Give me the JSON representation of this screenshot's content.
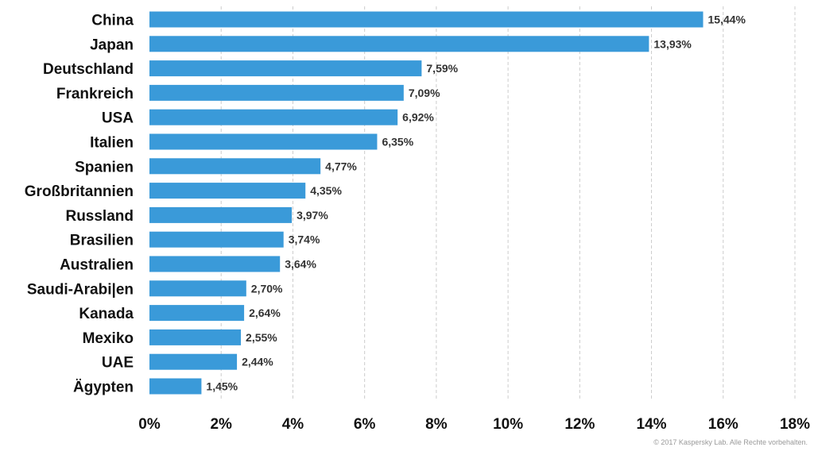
{
  "chart_data": {
    "type": "bar",
    "orientation": "horizontal",
    "categories": [
      "China",
      "Japan",
      "Deutschland",
      "Frankreich",
      "USA",
      "Italien",
      "Spanien",
      "Großbritannien",
      "Russland",
      "Brasilien",
      "Australien",
      "Saudi-Arabi|en",
      "Kanada",
      "Mexiko",
      "UAE",
      "Ägypten"
    ],
    "values": [
      15.44,
      13.93,
      7.59,
      7.09,
      6.92,
      6.35,
      4.77,
      4.35,
      3.97,
      3.74,
      3.64,
      2.7,
      2.64,
      2.55,
      2.44,
      1.45
    ],
    "value_labels": [
      "15,44%",
      "13,93%",
      "7,59%",
      "7,09%",
      "6,92%",
      "6,35%",
      "4,77%",
      "4,35%",
      "3,97%",
      "3,74%",
      "3,64%",
      "2,70%",
      "2,64%",
      "2,55%",
      "2,44%",
      "1,45%"
    ],
    "xticks": [
      0,
      2,
      4,
      6,
      8,
      10,
      12,
      14,
      16,
      18
    ],
    "xtick_labels": [
      "0%",
      "2%",
      "4%",
      "6%",
      "8%",
      "10%",
      "12%",
      "14%",
      "16%",
      "18%"
    ],
    "xlim": [
      0,
      18
    ],
    "grid": "vertical dashed",
    "title": "",
    "xlabel": "",
    "ylabel": "",
    "bar_color": "#3a9ad9",
    "grid_color": "#cccccc"
  },
  "footer": {
    "copyright": "© 2017 Kaspersky Lab. Alle Rechte vorbehalten."
  }
}
